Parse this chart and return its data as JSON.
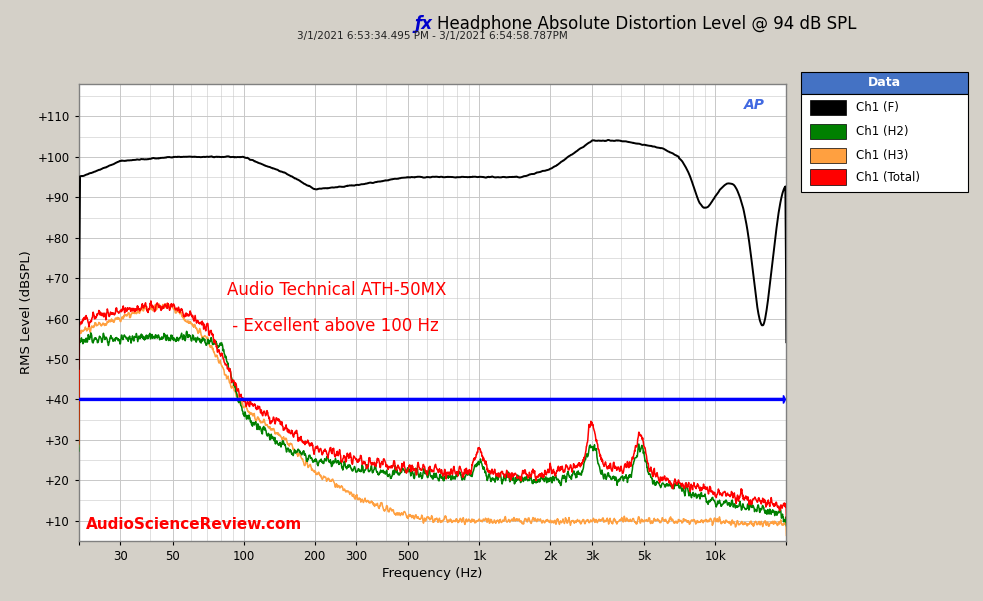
{
  "title": "Headphone Absolute Distortion Level @ 94 dB SPL",
  "subtitle": "3/1/2021 6:53:34.495 PM - 3/1/2021 6:54:58.787PM",
  "ylabel": "RMS Level (dBSPL)",
  "xlabel": "Frequency (Hz)",
  "annotation_line1": "Audio Technical ATH-50MX",
  "annotation_line2": " - Excellent above 100 Hz",
  "watermark": "AudioScienceReview.com",
  "ylim": [
    5,
    118
  ],
  "xlim": [
    20,
    20000
  ],
  "yticks": [
    10,
    20,
    30,
    40,
    50,
    60,
    70,
    80,
    90,
    100,
    110
  ],
  "ytick_labels": [
    "+10",
    "+20",
    "+30",
    "+40",
    "+50",
    "+60",
    "+70",
    "+80",
    "+90",
    "+100",
    "+110"
  ],
  "xticks": [
    20,
    30,
    50,
    100,
    200,
    300,
    500,
    1000,
    2000,
    3000,
    5000,
    10000,
    20000
  ],
  "xtick_labels": [
    "",
    "30",
    "50",
    "100",
    "200",
    "300",
    "500",
    "1k",
    "2k",
    "3k",
    "5k",
    "10k",
    ""
  ],
  "blue_line_y": 40,
  "legend_title": "Data",
  "legend_entries": [
    "Ch1 (F)",
    "Ch1 (H2)",
    "Ch1 (H3)",
    "Ch1 (Total)"
  ],
  "line_colors": [
    "#000000",
    "#008000",
    "#FFA040",
    "#FF0000"
  ],
  "background_color": "#D4D0C8",
  "plot_bg_color": "#FFFFFF",
  "grid_color": "#C8C8C8",
  "title_color": "#000000",
  "title_fx_color": "#0000CC",
  "ap_logo_color": "#4169E1",
  "watermark_color": "#FF0000",
  "legend_header_color": "#4472C4",
  "border_color": "#808080"
}
